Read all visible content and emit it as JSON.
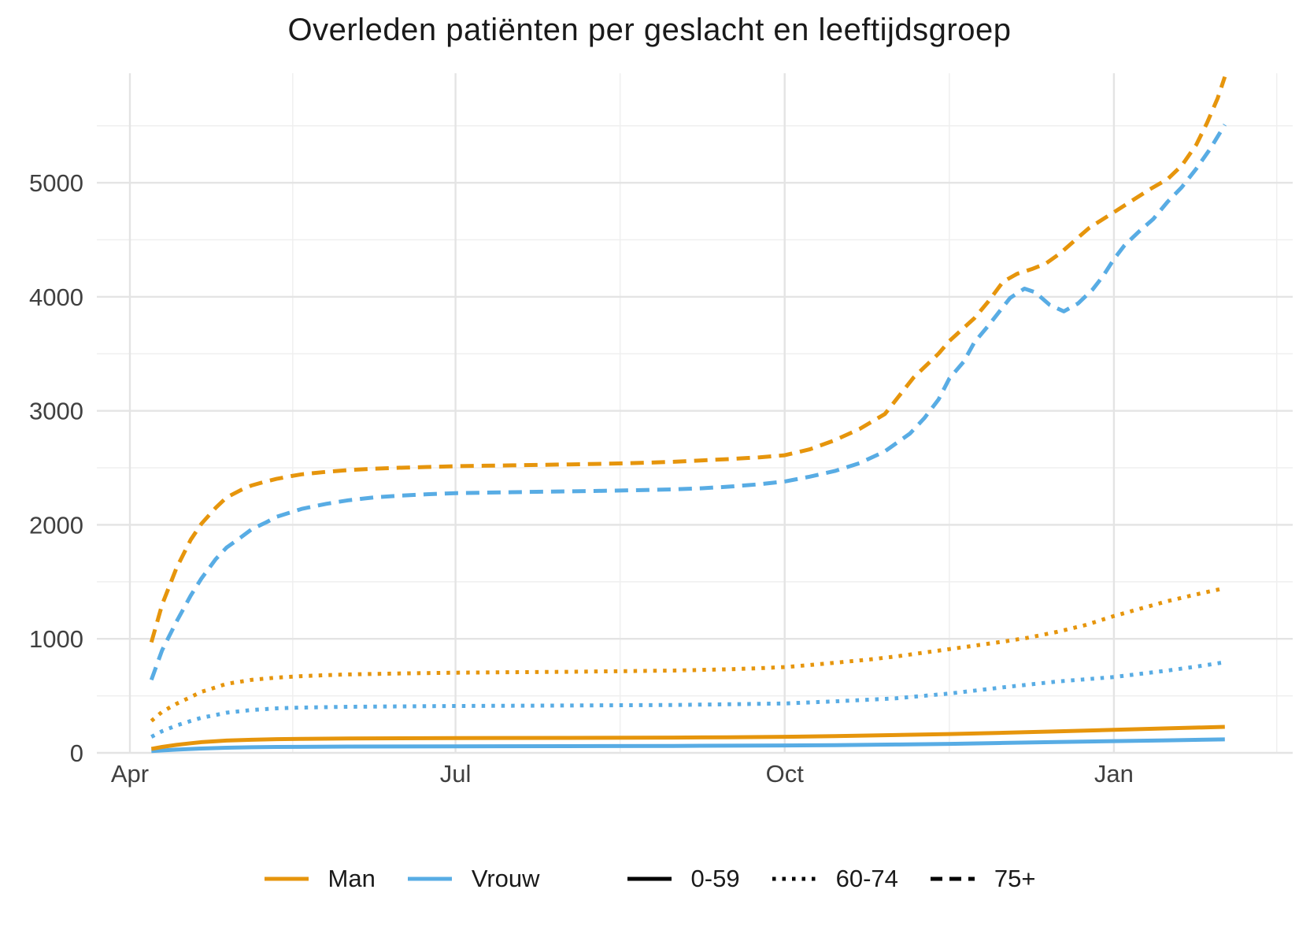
{
  "title": "Overleden patiënten per geslacht en leeftijdsgroep",
  "colors": {
    "man": "#E6950C",
    "vrouw": "#58ACE4",
    "age": "#000000",
    "title": "#1A1A1A",
    "axis_text": "#404040",
    "grid_major": "#E4E4E4",
    "grid_minor": "#EFEFEF"
  },
  "legend": {
    "sex": [
      {
        "label": "Man"
      },
      {
        "label": "Vrouw"
      }
    ],
    "age": [
      {
        "label": "0-59",
        "dash": "solid"
      },
      {
        "label": "60-74",
        "dash": "dotted"
      },
      {
        "label": "75+",
        "dash": "dashed"
      }
    ]
  },
  "chart_data": {
    "type": "line",
    "title": "Overleden patiënten per geslacht en leeftijdsgroep",
    "xlabel": "",
    "ylabel": "",
    "x_unit": "days since 1 April (Apr 2020 – mid Feb 2021)",
    "xlim": [
      -9,
      325
    ],
    "ylim": [
      0,
      5960
    ],
    "grid": true,
    "legend_position": "bottom",
    "x_ticks": [
      {
        "label": "Apr",
        "day": 0
      },
      {
        "label": "Jul",
        "day": 91
      },
      {
        "label": "Oct",
        "day": 183
      },
      {
        "label": "Jan",
        "day": 275
      }
    ],
    "x_minor_days": [
      45.5,
      137,
      229,
      320.5
    ],
    "y_ticks": [
      0,
      1000,
      2000,
      3000,
      4000,
      5000
    ],
    "y_minor": [
      500,
      1500,
      2500,
      3500,
      4500,
      5500
    ],
    "series": [
      {
        "id": "vrouw-0-59",
        "sex": "Vrouw",
        "age": "0-59",
        "color_key": "vrouw",
        "dash": "solid",
        "points": [
          [
            6,
            15
          ],
          [
            13,
            28
          ],
          [
            20,
            38
          ],
          [
            27,
            45
          ],
          [
            34,
            49
          ],
          [
            41,
            52
          ],
          [
            61,
            55
          ],
          [
            91,
            57
          ],
          [
            122,
            59
          ],
          [
            152,
            61
          ],
          [
            183,
            65
          ],
          [
            197,
            68
          ],
          [
            214,
            73
          ],
          [
            229,
            79
          ],
          [
            244,
            87
          ],
          [
            259,
            95
          ],
          [
            275,
            103
          ],
          [
            290,
            110
          ],
          [
            306,
            118
          ]
        ]
      },
      {
        "id": "man-0-59",
        "sex": "Man",
        "age": "0-59",
        "color_key": "man",
        "dash": "solid",
        "points": [
          [
            6,
            35
          ],
          [
            9,
            52
          ],
          [
            13,
            70
          ],
          [
            17,
            84
          ],
          [
            20,
            94
          ],
          [
            24,
            102
          ],
          [
            27,
            108
          ],
          [
            34,
            115
          ],
          [
            41,
            120
          ],
          [
            48,
            123
          ],
          [
            61,
            126
          ],
          [
            91,
            129
          ],
          [
            122,
            131
          ],
          [
            152,
            134
          ],
          [
            167,
            137
          ],
          [
            183,
            141
          ],
          [
            197,
            147
          ],
          [
            214,
            156
          ],
          [
            229,
            165
          ],
          [
            244,
            176
          ],
          [
            259,
            188
          ],
          [
            275,
            202
          ],
          [
            290,
            215
          ],
          [
            306,
            228
          ]
        ]
      },
      {
        "id": "vrouw-60-74",
        "sex": "Vrouw",
        "age": "60-74",
        "color_key": "vrouw",
        "dash": "dotted",
        "points": [
          [
            6,
            140
          ],
          [
            9,
            190
          ],
          [
            13,
            240
          ],
          [
            17,
            280
          ],
          [
            20,
            308
          ],
          [
            24,
            332
          ],
          [
            27,
            352
          ],
          [
            31,
            366
          ],
          [
            34,
            376
          ],
          [
            41,
            390
          ],
          [
            48,
            397
          ],
          [
            61,
            404
          ],
          [
            91,
            411
          ],
          [
            122,
            415
          ],
          [
            152,
            420
          ],
          [
            167,
            426
          ],
          [
            183,
            433
          ],
          [
            197,
            452
          ],
          [
            214,
            478
          ],
          [
            229,
            520
          ],
          [
            244,
            575
          ],
          [
            259,
            625
          ],
          [
            275,
            665
          ],
          [
            290,
            722
          ],
          [
            298,
            756
          ],
          [
            306,
            795
          ]
        ]
      },
      {
        "id": "man-60-74",
        "sex": "Man",
        "age": "60-74",
        "color_key": "man",
        "dash": "dotted",
        "points": [
          [
            6,
            280
          ],
          [
            9,
            360
          ],
          [
            13,
            430
          ],
          [
            17,
            490
          ],
          [
            20,
            535
          ],
          [
            24,
            575
          ],
          [
            27,
            605
          ],
          [
            31,
            625
          ],
          [
            34,
            640
          ],
          [
            41,
            660
          ],
          [
            48,
            673
          ],
          [
            55,
            682
          ],
          [
            61,
            688
          ],
          [
            75,
            696
          ],
          [
            91,
            703
          ],
          [
            107,
            707
          ],
          [
            122,
            711
          ],
          [
            137,
            716
          ],
          [
            152,
            722
          ],
          [
            167,
            733
          ],
          [
            175,
            741
          ],
          [
            183,
            752
          ],
          [
            190,
            770
          ],
          [
            197,
            790
          ],
          [
            207,
            820
          ],
          [
            214,
            845
          ],
          [
            221,
            875
          ],
          [
            229,
            910
          ],
          [
            236,
            940
          ],
          [
            244,
            975
          ],
          [
            251,
            1010
          ],
          [
            259,
            1060
          ],
          [
            267,
            1120
          ],
          [
            275,
            1200
          ],
          [
            283,
            1270
          ],
          [
            290,
            1330
          ],
          [
            298,
            1390
          ],
          [
            306,
            1445
          ]
        ]
      },
      {
        "id": "vrouw-75plus",
        "sex": "Vrouw",
        "age": "75+",
        "color_key": "vrouw",
        "dash": "dashed",
        "points": [
          [
            6,
            640
          ],
          [
            9,
            900
          ],
          [
            13,
            1150
          ],
          [
            17,
            1380
          ],
          [
            20,
            1530
          ],
          [
            24,
            1700
          ],
          [
            27,
            1800
          ],
          [
            31,
            1890
          ],
          [
            34,
            1960
          ],
          [
            38,
            2020
          ],
          [
            41,
            2070
          ],
          [
            45,
            2110
          ],
          [
            48,
            2140
          ],
          [
            55,
            2185
          ],
          [
            61,
            2215
          ],
          [
            68,
            2240
          ],
          [
            75,
            2255
          ],
          [
            83,
            2268
          ],
          [
            91,
            2278
          ],
          [
            107,
            2286
          ],
          [
            122,
            2293
          ],
          [
            137,
            2301
          ],
          [
            152,
            2311
          ],
          [
            160,
            2321
          ],
          [
            168,
            2336
          ],
          [
            176,
            2356
          ],
          [
            183,
            2380
          ],
          [
            190,
            2422
          ],
          [
            197,
            2472
          ],
          [
            204,
            2542
          ],
          [
            211,
            2645
          ],
          [
            218,
            2800
          ],
          [
            222,
            2935
          ],
          [
            226,
            3100
          ],
          [
            229,
            3282
          ],
          [
            233,
            3430
          ],
          [
            236,
            3600
          ],
          [
            240,
            3750
          ],
          [
            243,
            3870
          ],
          [
            246,
            3990
          ],
          [
            250,
            4072
          ],
          [
            253,
            4040
          ],
          [
            257,
            3930
          ],
          [
            261,
            3872
          ],
          [
            265,
            3942
          ],
          [
            269,
            4062
          ],
          [
            272,
            4182
          ],
          [
            275,
            4330
          ],
          [
            278,
            4452
          ],
          [
            282,
            4572
          ],
          [
            286,
            4682
          ],
          [
            290,
            4832
          ],
          [
            294,
            4962
          ],
          [
            298,
            5122
          ],
          [
            302,
            5302
          ],
          [
            306,
            5510
          ]
        ]
      },
      {
        "id": "man-75plus",
        "sex": "Man",
        "age": "75+",
        "color_key": "man",
        "dash": "dashed",
        "points": [
          [
            6,
            970
          ],
          [
            9,
            1300
          ],
          [
            13,
            1620
          ],
          [
            17,
            1870
          ],
          [
            20,
            2010
          ],
          [
            24,
            2150
          ],
          [
            27,
            2240
          ],
          [
            31,
            2305
          ],
          [
            34,
            2345
          ],
          [
            38,
            2380
          ],
          [
            41,
            2403
          ],
          [
            45,
            2427
          ],
          [
            48,
            2443
          ],
          [
            55,
            2465
          ],
          [
            61,
            2480
          ],
          [
            68,
            2492
          ],
          [
            75,
            2500
          ],
          [
            83,
            2507
          ],
          [
            91,
            2514
          ],
          [
            99,
            2518
          ],
          [
            107,
            2522
          ],
          [
            115,
            2526
          ],
          [
            123,
            2530
          ],
          [
            130,
            2534
          ],
          [
            138,
            2539
          ],
          [
            145,
            2545
          ],
          [
            152,
            2553
          ],
          [
            160,
            2565
          ],
          [
            168,
            2578
          ],
          [
            176,
            2592
          ],
          [
            183,
            2610
          ],
          [
            190,
            2662
          ],
          [
            197,
            2742
          ],
          [
            204,
            2842
          ],
          [
            211,
            2972
          ],
          [
            219,
            3292
          ],
          [
            226,
            3502
          ],
          [
            229,
            3612
          ],
          [
            236,
            3812
          ],
          [
            240,
            3962
          ],
          [
            244,
            4132
          ],
          [
            248,
            4202
          ],
          [
            252,
            4242
          ],
          [
            256,
            4292
          ],
          [
            260,
            4382
          ],
          [
            264,
            4492
          ],
          [
            268,
            4602
          ],
          [
            271,
            4662
          ],
          [
            275,
            4742
          ],
          [
            280,
            4842
          ],
          [
            285,
            4942
          ],
          [
            290,
            5032
          ],
          [
            294,
            5152
          ],
          [
            298,
            5332
          ],
          [
            301,
            5522
          ],
          [
            304,
            5742
          ],
          [
            306,
            5930
          ]
        ]
      }
    ]
  }
}
